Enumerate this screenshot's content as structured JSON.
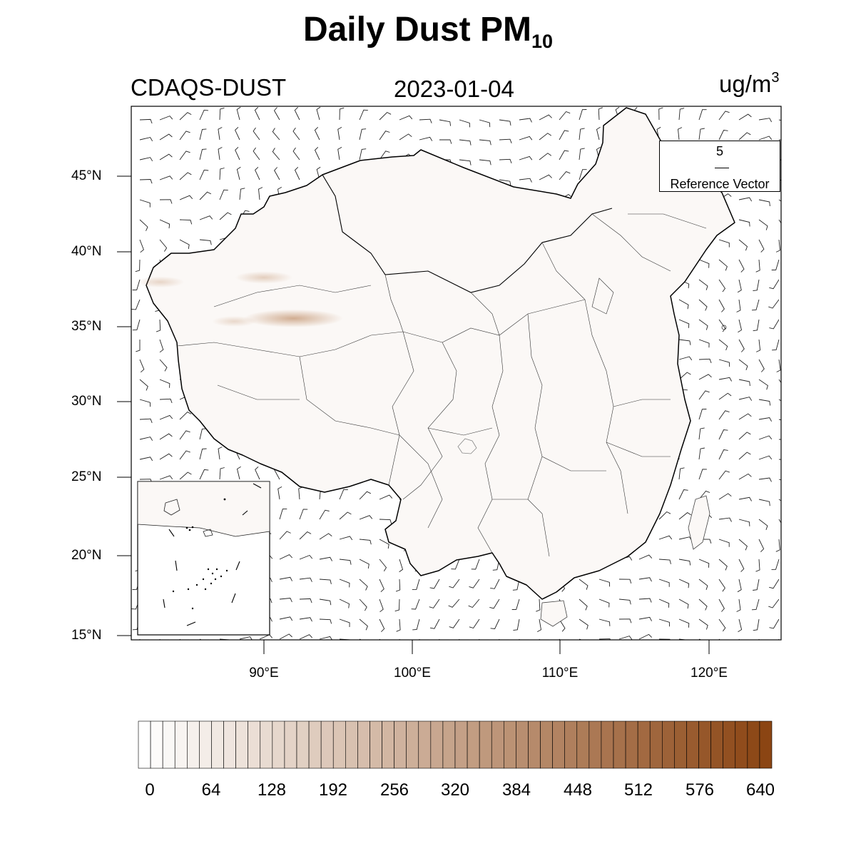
{
  "title": {
    "main": "Daily Dust PM",
    "subscript": "10"
  },
  "left_label": "CDAQS-DUST",
  "date_label": "2023-01-04",
  "units": {
    "base": "ug/m",
    "superscript": "3"
  },
  "axes": {
    "lat_ticks": [
      "45°N",
      "40°N",
      "35°N",
      "30°N",
      "25°N",
      "20°N",
      "15°N"
    ],
    "lon_ticks": [
      "90°E",
      "100°E",
      "110°E",
      "120°E"
    ]
  },
  "reference_vector": {
    "magnitude": "5",
    "label": "Reference Vector"
  },
  "colorbar": {
    "labels": [
      "0",
      "64",
      "128",
      "192",
      "256",
      "320",
      "384",
      "448",
      "512",
      "576",
      "640"
    ],
    "min": 0,
    "max": 640,
    "bins": 52,
    "color_low": "#ffffff",
    "color_high": "#8b4513"
  },
  "dust_hotspots": [
    {
      "lon": 92.0,
      "lat": 35.6,
      "value": 110
    },
    {
      "lon": 90.0,
      "lat": 38.3,
      "value": 45
    },
    {
      "lon": 83.0,
      "lat": 38.0,
      "value": 30
    },
    {
      "lon": 88.0,
      "lat": 35.4,
      "value": 25
    }
  ]
}
